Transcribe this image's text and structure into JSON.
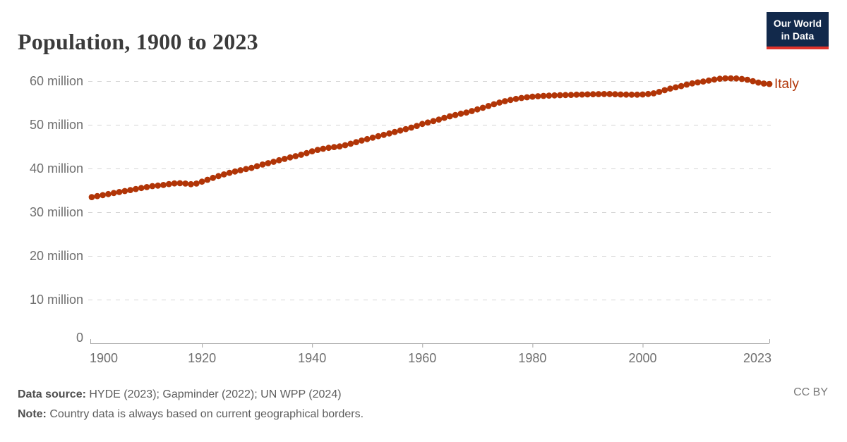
{
  "header": {
    "title": "Population, 1900 to 2023"
  },
  "logo": {
    "line1": "Our World",
    "line2": "in Data",
    "bg_color": "#12294b",
    "stripe_color": "#e0332b"
  },
  "chart_data": {
    "type": "line",
    "marker": "dot",
    "title": "Population, 1900 to 2023",
    "xlabel": "",
    "ylabel": "",
    "xlim": [
      1900,
      2023
    ],
    "ylim": [
      0,
      60000000
    ],
    "grid": "horizontal-dashed",
    "grid_color": "#d5d5d5",
    "axis_color": "#a5a5a5",
    "tick_label_color": "#6f6f6f",
    "x_ticks": [
      {
        "value": 1900,
        "label": "1900"
      },
      {
        "value": 1920,
        "label": "1920"
      },
      {
        "value": 1940,
        "label": "1940"
      },
      {
        "value": 1960,
        "label": "1960"
      },
      {
        "value": 1980,
        "label": "1980"
      },
      {
        "value": 2000,
        "label": "2000"
      },
      {
        "value": 2023,
        "label": "2023"
      }
    ],
    "y_ticks": [
      {
        "value": 0,
        "label": "0"
      },
      {
        "value": 10,
        "label": "10 million"
      },
      {
        "value": 20,
        "label": "20 million"
      },
      {
        "value": 30,
        "label": "30 million"
      },
      {
        "value": 40,
        "label": "40 million"
      },
      {
        "value": 50,
        "label": "50 million"
      },
      {
        "value": 60,
        "label": "60 million"
      }
    ],
    "y_unit": "million",
    "x_start_year": 1900,
    "series": [
      {
        "name": "Italy",
        "color": "#b13507",
        "values_millions": [
          33.45,
          33.67,
          33.91,
          34.14,
          34.38,
          34.61,
          34.84,
          35.07,
          35.3,
          35.53,
          35.75,
          35.96,
          36.08,
          36.23,
          36.43,
          36.58,
          36.63,
          36.55,
          36.4,
          36.55,
          36.98,
          37.42,
          37.85,
          38.26,
          38.65,
          39.0,
          39.3,
          39.59,
          39.87,
          40.13,
          40.52,
          40.91,
          41.21,
          41.54,
          41.89,
          42.2,
          42.53,
          42.83,
          43.14,
          43.52,
          43.93,
          44.26,
          44.52,
          44.73,
          44.91,
          45.05,
          45.33,
          45.66,
          46.04,
          46.39,
          46.72,
          47.05,
          47.38,
          47.7,
          48.02,
          48.35,
          48.68,
          49.01,
          49.35,
          49.75,
          50.2,
          50.52,
          50.84,
          51.2,
          51.6,
          51.94,
          52.24,
          52.53,
          52.81,
          53.14,
          53.52,
          53.89,
          54.29,
          54.7,
          55.08,
          55.4,
          55.68,
          55.92,
          56.13,
          56.29,
          56.43,
          56.54,
          56.62,
          56.68,
          56.73,
          56.77,
          56.81,
          56.84,
          56.88,
          56.92,
          56.95,
          56.98,
          57.01,
          57.04,
          57.03,
          56.99,
          56.94,
          56.9,
          56.88,
          56.89,
          56.94,
          57.05,
          57.2,
          57.51,
          57.92,
          58.28,
          58.56,
          58.86,
          59.19,
          59.46,
          59.69,
          59.9,
          60.12,
          60.35,
          60.54,
          60.63,
          60.63,
          60.59,
          60.48,
          60.3,
          59.99,
          59.66,
          59.44,
          59.34
        ]
      }
    ]
  },
  "footer": {
    "source_label": "Data source:",
    "source_text": "HYDE (2023); Gapminder (2022); UN WPP (2024)",
    "note_label": "Note:",
    "note_text": "Country data is always based on current geographical borders.",
    "license": "CC BY"
  }
}
